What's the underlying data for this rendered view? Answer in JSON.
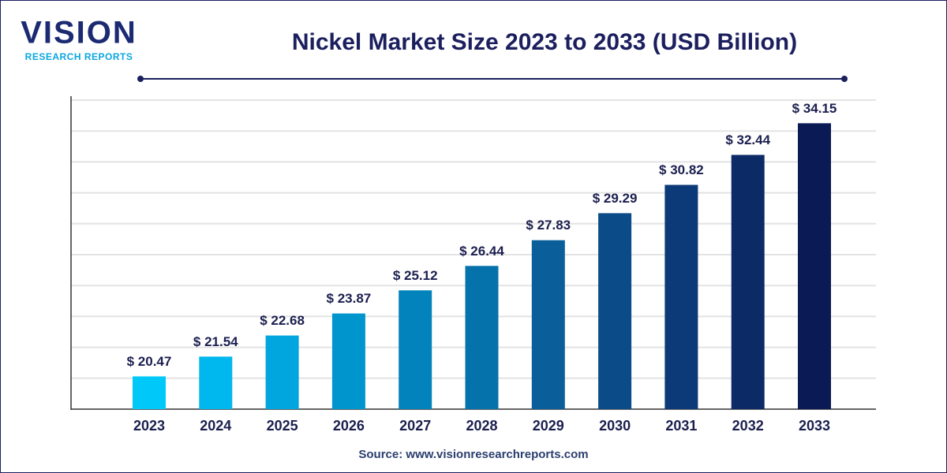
{
  "logo": {
    "name": "VISION",
    "tagline": "RESEARCH REPORTS"
  },
  "chart_data": {
    "type": "bar",
    "title": "Nickel Market Size 2023 to 2033 (USD Billion)",
    "source": "Source: www.visionresearchreports.com",
    "categories": [
      "2023",
      "2024",
      "2025",
      "2026",
      "2027",
      "2028",
      "2029",
      "2030",
      "2031",
      "2032",
      "2033"
    ],
    "values": [
      20.47,
      21.54,
      22.68,
      23.87,
      25.12,
      26.44,
      27.83,
      29.29,
      30.82,
      32.44,
      34.15
    ],
    "value_labels": [
      "$ 20.47",
      "$ 21.54",
      "$ 22.68",
      "$ 23.87",
      "$ 25.12",
      "$ 26.44",
      "$ 27.83",
      "$ 29.29",
      "$ 30.82",
      "$ 32.44",
      "$ 34.15"
    ],
    "colors": [
      "#00c8f8",
      "#00b8ee",
      "#00a6dd",
      "#0095cc",
      "#0383bb",
      "#0672ab",
      "#0a5f9a",
      "#0b4b88",
      "#0c3a78",
      "#0b2a66",
      "#0a1a55"
    ],
    "ylim": [
      18.7,
      35.4
    ],
    "grid": true
  }
}
